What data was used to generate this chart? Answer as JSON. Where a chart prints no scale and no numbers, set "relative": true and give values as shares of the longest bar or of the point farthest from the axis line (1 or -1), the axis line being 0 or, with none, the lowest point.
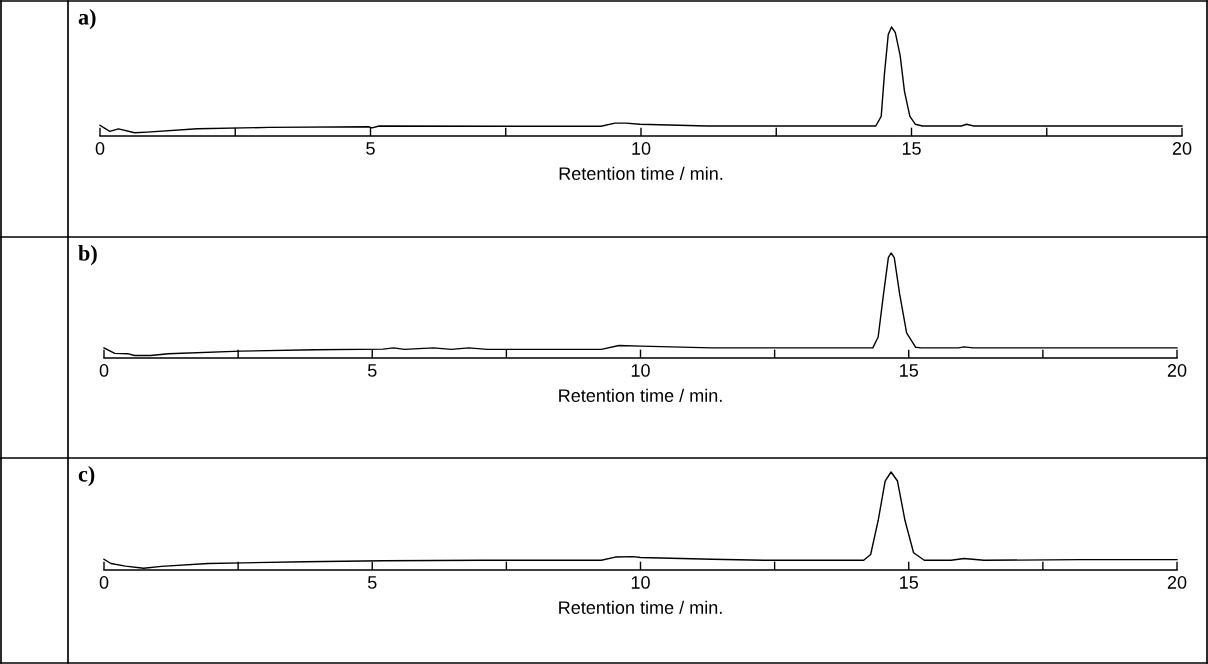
{
  "chart_data": [
    {
      "type": "line",
      "title": "a)",
      "xlabel": "Retention time / min.",
      "relative": true,
      "xlim": [
        0,
        20
      ],
      "xticks": [
        0,
        {
          "value": 2.5,
          "label": null
        },
        5,
        {
          "value": 7.5,
          "label": null
        },
        10,
        {
          "value": 12.5,
          "label": null
        },
        15,
        {
          "value": 17.5,
          "label": null
        },
        20
      ],
      "tick_labels": "x",
      "grid": false,
      "legend": false,
      "series": [
        {
          "color": "#000000",
          "x": [
            0.0,
            0.18,
            0.34,
            0.64,
            0.87,
            1.8,
            3.12,
            4.96,
            5.03,
            5.16,
            7.47,
            9.26,
            9.52,
            9.72,
            9.98,
            11.23,
            14.34,
            14.44,
            14.5,
            14.57,
            14.63,
            14.7,
            14.79,
            14.87,
            14.97,
            15.07,
            15.2,
            15.92,
            16.02,
            16.15,
            20.0
          ],
          "values": [
            0.098,
            0.043,
            0.066,
            0.03,
            0.036,
            0.066,
            0.079,
            0.085,
            0.075,
            0.092,
            0.089,
            0.089,
            0.118,
            0.118,
            0.108,
            0.092,
            0.092,
            0.18,
            0.57,
            0.93,
            1.0,
            0.95,
            0.74,
            0.41,
            0.18,
            0.108,
            0.092,
            0.092,
            0.108,
            0.092,
            0.092
          ]
        }
      ]
    },
    {
      "type": "line",
      "title": "b)",
      "xlabel": "Retention time / min.",
      "relative": true,
      "xlim": [
        0,
        20
      ],
      "xticks": [
        0,
        {
          "value": 2.5,
          "label": null
        },
        5,
        {
          "value": 7.5,
          "label": null
        },
        10,
        {
          "value": 12.5,
          "label": null
        },
        15,
        {
          "value": 17.5,
          "label": null
        },
        20
      ],
      "tick_labels": "x",
      "grid": false,
      "legend": false,
      "series": [
        {
          "color": "#000000",
          "x": [
            0.0,
            0.2,
            0.44,
            0.57,
            0.87,
            1.2,
            2.54,
            3.94,
            5.2,
            5.4,
            5.6,
            6.14,
            6.47,
            6.8,
            7.14,
            9.27,
            9.6,
            10.0,
            11.33,
            14.33,
            14.43,
            14.53,
            14.62,
            14.67,
            14.73,
            14.83,
            14.96,
            15.13,
            15.23,
            15.93,
            16.03,
            16.2,
            20.0
          ],
          "values": [
            0.096,
            0.044,
            0.041,
            0.024,
            0.024,
            0.041,
            0.065,
            0.078,
            0.085,
            0.096,
            0.082,
            0.096,
            0.082,
            0.096,
            0.082,
            0.082,
            0.119,
            0.113,
            0.096,
            0.096,
            0.2,
            0.61,
            0.956,
            1.0,
            0.956,
            0.61,
            0.24,
            0.102,
            0.096,
            0.096,
            0.106,
            0.096,
            0.096
          ]
        }
      ]
    },
    {
      "type": "line",
      "title": "c)",
      "xlabel": "Retention time / min.",
      "relative": true,
      "xlim": [
        0,
        20
      ],
      "xticks": [
        0,
        {
          "value": 2.5,
          "label": null
        },
        5,
        {
          "value": 7.5,
          "label": null
        },
        10,
        {
          "value": 12.5,
          "label": null
        },
        15,
        {
          "value": 17.5,
          "label": null
        },
        20
      ],
      "tick_labels": "x",
      "grid": false,
      "legend": false,
      "series": [
        {
          "color": "#000000",
          "x": [
            0.0,
            0.13,
            0.4,
            0.74,
            1.07,
            1.94,
            2.6,
            3.74,
            5.2,
            7.07,
            9.27,
            9.53,
            9.87,
            10.0,
            11.33,
            12.33,
            14.16,
            14.29,
            14.43,
            14.56,
            14.67,
            14.79,
            14.93,
            15.09,
            15.29,
            15.79,
            16.03,
            16.4,
            18.2,
            20.0
          ],
          "values": [
            0.11,
            0.066,
            0.04,
            0.018,
            0.037,
            0.066,
            0.073,
            0.084,
            0.095,
            0.099,
            0.099,
            0.132,
            0.136,
            0.128,
            0.11,
            0.099,
            0.099,
            0.158,
            0.505,
            0.908,
            1.0,
            0.908,
            0.505,
            0.176,
            0.099,
            0.099,
            0.117,
            0.099,
            0.106,
            0.106
          ]
        }
      ]
    }
  ]
}
